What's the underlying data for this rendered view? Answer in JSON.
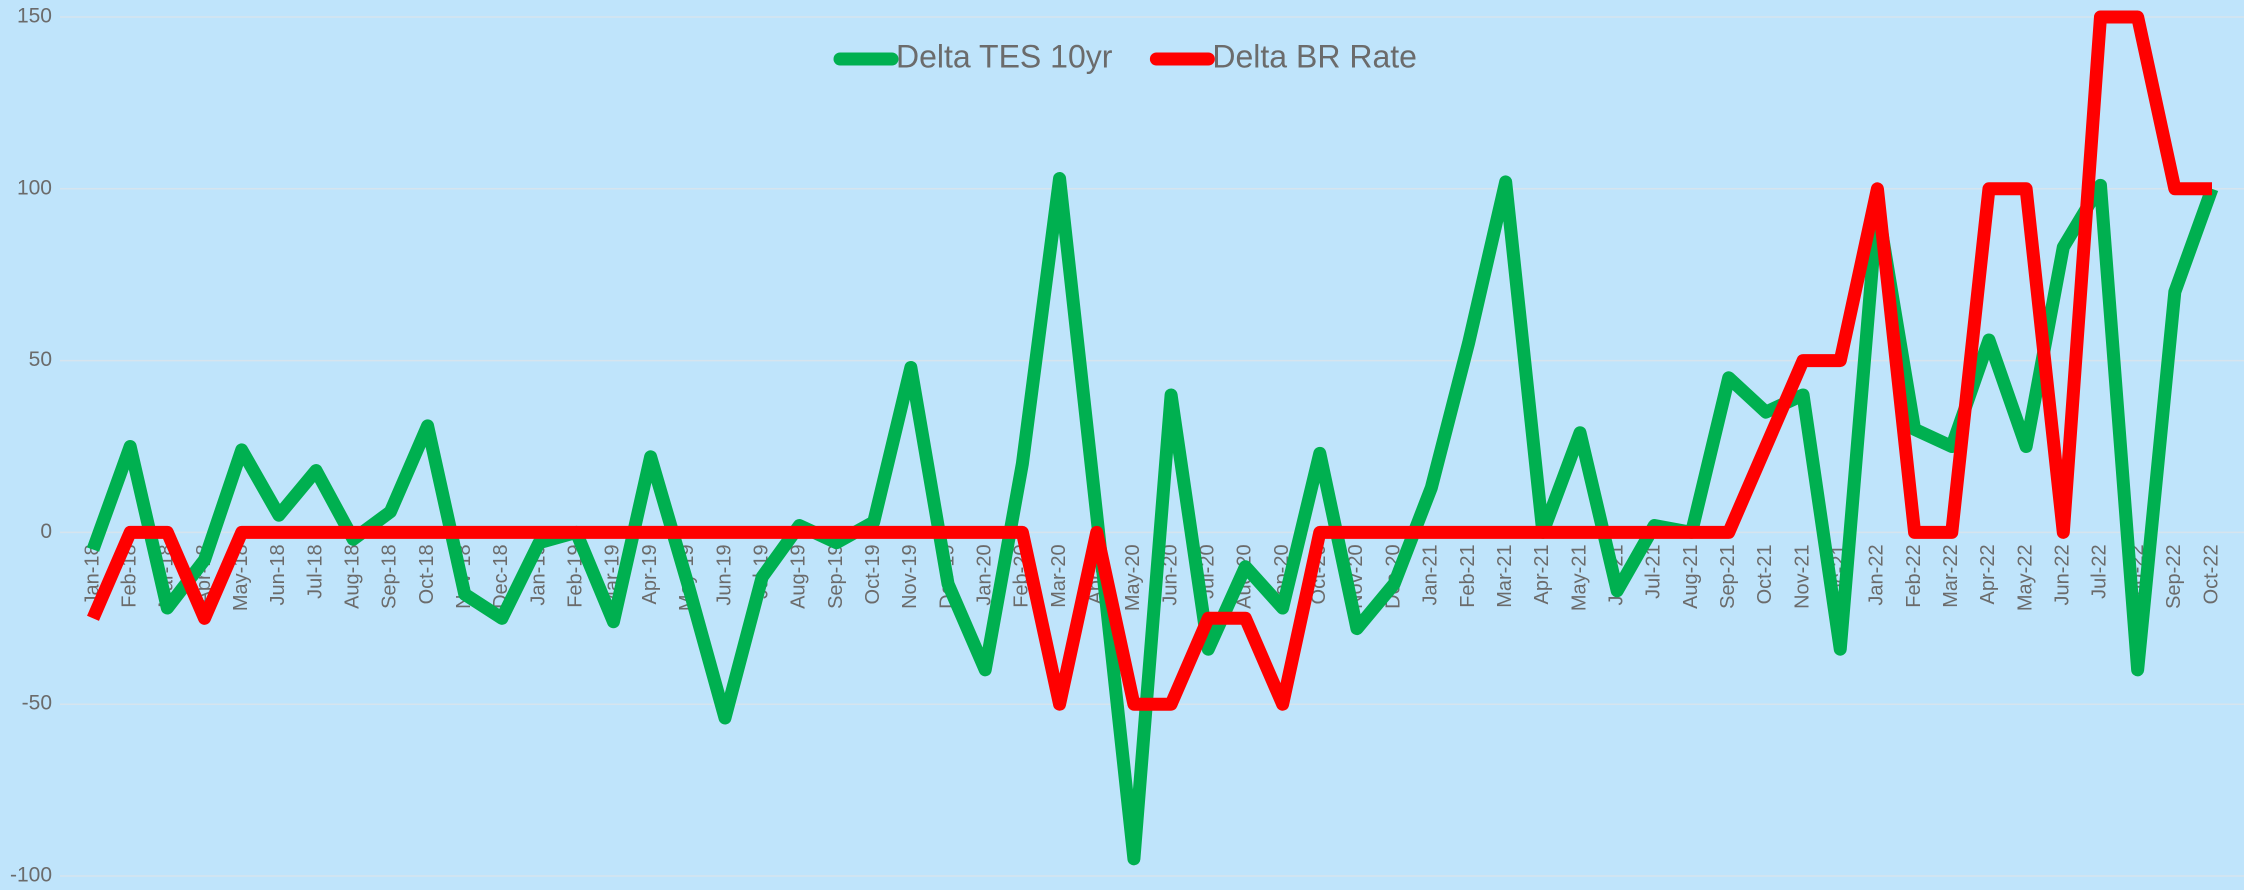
{
  "chart_data": {
    "type": "line",
    "categories": [
      "Jan-18",
      "Feb-18",
      "Mar-18",
      "Apr-18",
      "May-18",
      "Jun-18",
      "Jul-18",
      "Aug-18",
      "Sep-18",
      "Oct-18",
      "Nov-18",
      "Dec-18",
      "Jan-19",
      "Feb-19",
      "Mar-19",
      "Apr-19",
      "May-19",
      "Jun-19",
      "Jul-19",
      "Aug-19",
      "Sep-19",
      "Oct-19",
      "Nov-19",
      "Dec-19",
      "Jan-20",
      "Feb-20",
      "Mar-20",
      "Apr-20",
      "May-20",
      "Jun-20",
      "Jul-20",
      "Aug-20",
      "Sep-20",
      "Oct-20",
      "Nov-20",
      "Dec-20",
      "Jan-21",
      "Feb-21",
      "Mar-21",
      "Apr-21",
      "May-21",
      "Jun-21",
      "Jul-21",
      "Aug-21",
      "Sep-21",
      "Oct-21",
      "Nov-21",
      "Dec-21",
      "Jan-22",
      "Feb-22",
      "Mar-22",
      "Apr-22",
      "May-22",
      "Jun-22",
      "Jul-22",
      "Aug-22",
      "Sep-22",
      "Oct-22"
    ],
    "series": [
      {
        "name": "Delta TES 10yr",
        "color": "#00b050",
        "values": [
          -5,
          25,
          -22,
          -8,
          24,
          5,
          18,
          -2,
          6,
          31,
          -18,
          -25,
          -3,
          0,
          -26,
          22,
          -15,
          -54,
          -13,
          2,
          -3,
          3,
          48,
          -15,
          -40,
          20,
          103,
          5,
          -95,
          40,
          -34,
          -10,
          -22,
          23,
          -28,
          -15,
          13,
          55,
          102,
          0,
          29,
          -17,
          2,
          0,
          45,
          35,
          40,
          -34,
          95,
          30,
          25,
          56,
          25,
          83,
          101,
          -40,
          70,
          100
        ]
      },
      {
        "name": "Delta BR Rate",
        "color": "#ff0000",
        "values": [
          -25,
          0,
          0,
          -25,
          0,
          0,
          0,
          0,
          0,
          0,
          0,
          0,
          0,
          0,
          0,
          0,
          0,
          0,
          0,
          0,
          0,
          0,
          0,
          0,
          0,
          0,
          -50,
          0,
          -50,
          -50,
          -25,
          -25,
          -50,
          0,
          0,
          0,
          0,
          0,
          0,
          0,
          0,
          0,
          0,
          0,
          0,
          25,
          50,
          50,
          100,
          0,
          0,
          100,
          100,
          0,
          150,
          150,
          100,
          100
        ]
      }
    ],
    "ylim": [
      -100,
      150
    ],
    "yticks": [
      -100,
      -50,
      0,
      50,
      100,
      150
    ],
    "grid": true,
    "legend": "top"
  }
}
